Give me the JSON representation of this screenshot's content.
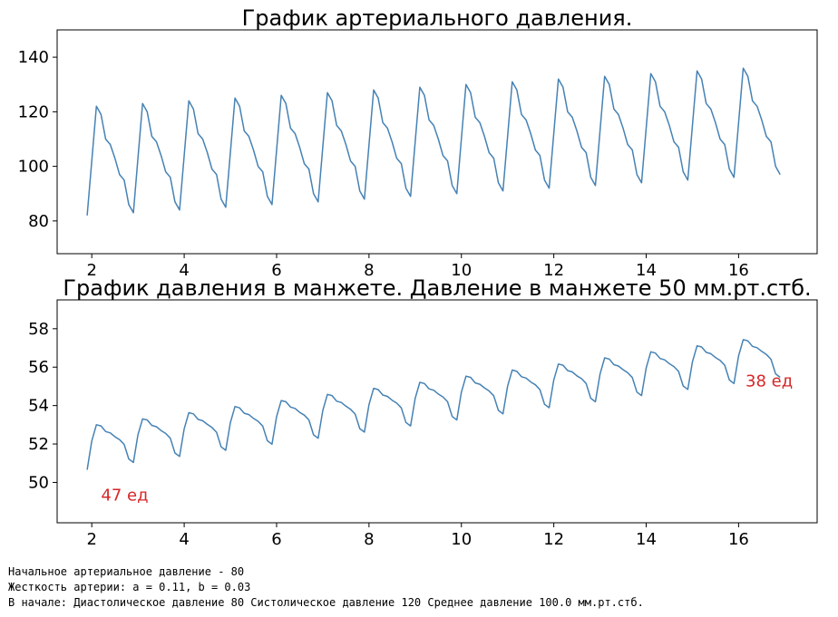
{
  "chart_data": [
    {
      "type": "line",
      "title": "График артериального давления.",
      "xlabel": "",
      "ylabel": "",
      "xlim": [
        1.25,
        17.7
      ],
      "ylim": [
        68,
        150
      ],
      "xticks": [
        2,
        4,
        6,
        8,
        10,
        12,
        14,
        16
      ],
      "yticks": [
        80,
        100,
        120,
        140
      ],
      "grid": false,
      "color": "#4682b4",
      "series": [
        {
          "x": [
            1.9,
            2.0,
            2.1,
            2.2,
            2.3,
            2.4,
            2.5,
            2.6,
            2.7,
            2.8,
            2.9,
            3.0,
            3.1,
            3.2,
            3.3,
            3.4,
            3.5,
            3.6,
            3.7,
            3.8,
            3.9,
            4.0,
            4.1,
            4.2,
            4.3,
            4.4,
            4.5,
            4.6,
            4.7,
            4.8,
            4.9,
            5.0,
            5.1,
            5.2,
            5.3,
            5.4,
            5.5,
            5.6,
            5.7,
            5.8,
            5.9,
            6.0,
            6.1,
            6.2,
            6.3,
            6.4,
            6.5,
            6.6,
            6.7,
            6.8,
            6.9,
            7.0,
            7.1,
            7.2,
            7.3,
            7.4,
            7.5,
            7.6,
            7.7,
            7.8,
            7.9,
            8.0,
            8.1,
            8.2,
            8.3,
            8.4,
            8.5,
            8.6,
            8.7,
            8.8,
            8.9,
            9.0,
            9.1,
            9.2,
            9.3,
            9.4,
            9.5,
            9.6,
            9.7,
            9.8,
            9.9,
            10.0,
            10.1,
            10.2,
            10.3,
            10.4,
            10.5,
            10.6,
            10.7,
            10.8,
            10.9,
            11.0,
            11.1,
            11.2,
            11.3,
            11.4,
            11.5,
            11.6,
            11.7,
            11.8,
            11.9,
            12.0,
            12.1,
            12.2,
            12.3,
            12.4,
            12.5,
            12.6,
            12.7,
            12.8,
            12.9,
            13.0,
            13.1,
            13.2,
            13.3,
            13.4,
            13.5,
            13.6,
            13.7,
            13.8,
            13.9,
            14.0,
            14.1,
            14.2,
            14.3,
            14.4,
            14.5,
            14.6,
            14.7,
            14.8,
            14.9,
            15.0,
            15.1,
            15.2,
            15.3,
            15.4,
            15.5,
            15.6,
            15.7,
            15.8,
            15.9,
            16.0,
            16.1,
            16.2,
            16.3,
            16.4,
            16.5,
            16.6,
            16.7,
            16.8,
            16.9
          ],
          "values": [
            82.0,
            102.0,
            122.0,
            119.0,
            110.0,
            108.0,
            103.0,
            97.0,
            95.0,
            86.0,
            83.0,
            103.0,
            123.0,
            120.0,
            111.0,
            109.0,
            104.0,
            98.0,
            96.0,
            87.0,
            84.0,
            104.0,
            124.0,
            121.0,
            112.0,
            110.0,
            105.0,
            99.0,
            97.0,
            88.0,
            85.0,
            105.0,
            125.0,
            122.0,
            113.0,
            111.0,
            106.0,
            100.0,
            98.0,
            89.0,
            86.0,
            106.0,
            126.0,
            123.0,
            114.0,
            112.0,
            107.0,
            101.0,
            99.0,
            90.0,
            87.0,
            107.0,
            127.0,
            124.0,
            115.0,
            113.0,
            108.0,
            102.0,
            100.0,
            91.0,
            88.0,
            108.0,
            128.0,
            125.0,
            116.0,
            114.0,
            109.0,
            103.0,
            101.0,
            92.0,
            89.0,
            109.0,
            129.0,
            126.0,
            117.0,
            115.0,
            110.0,
            104.0,
            102.0,
            93.0,
            90.0,
            110.0,
            130.0,
            127.0,
            118.0,
            116.0,
            111.0,
            105.0,
            103.0,
            94.0,
            91.0,
            111.0,
            131.0,
            128.0,
            119.0,
            117.0,
            112.0,
            106.0,
            104.0,
            95.0,
            92.0,
            112.0,
            132.0,
            129.0,
            120.0,
            118.0,
            113.0,
            107.0,
            105.0,
            96.0,
            93.0,
            113.0,
            133.0,
            130.0,
            121.0,
            119.0,
            114.0,
            108.0,
            106.0,
            97.0,
            94.0,
            114.0,
            134.0,
            131.0,
            122.0,
            120.0,
            115.0,
            109.0,
            107.0,
            98.0,
            95.0,
            115.0,
            135.0,
            132.0,
            123.0,
            121.0,
            116.0,
            110.0,
            108.0,
            99.0,
            96.0,
            116.0,
            136.0,
            133.0,
            124.0,
            122.0,
            117.0,
            111.0,
            109.0,
            100.0,
            97.0
          ]
        }
      ],
      "annotations": []
    },
    {
      "type": "line",
      "title": "График давления в манжете. Давление в манжете 50 мм.рт.стб.",
      "xlabel": "",
      "ylabel": "",
      "xlim": [
        1.25,
        17.7
      ],
      "ylim": [
        47.9,
        59.5
      ],
      "xticks": [
        2,
        4,
        6,
        8,
        10,
        12,
        14,
        16
      ],
      "yticks": [
        50,
        52,
        54,
        56,
        58
      ],
      "grid": false,
      "color": "#4682b4",
      "series": [
        {
          "x": [
            1.9,
            2.0,
            2.1,
            2.2,
            2.3,
            2.4,
            2.5,
            2.6,
            2.7,
            2.8,
            2.9,
            3.0,
            3.1,
            3.2,
            3.3,
            3.4,
            3.5,
            3.6,
            3.7,
            3.8,
            3.9,
            4.0,
            4.1,
            4.2,
            4.3,
            4.4,
            4.5,
            4.6,
            4.7,
            4.8,
            4.9,
            5.0,
            5.1,
            5.2,
            5.3,
            5.4,
            5.5,
            5.6,
            5.7,
            5.8,
            5.9,
            6.0,
            6.1,
            6.2,
            6.3,
            6.4,
            6.5,
            6.6,
            6.7,
            6.8,
            6.9,
            7.0,
            7.1,
            7.2,
            7.3,
            7.4,
            7.5,
            7.6,
            7.7,
            7.8,
            7.9,
            8.0,
            8.1,
            8.2,
            8.3,
            8.4,
            8.5,
            8.6,
            8.7,
            8.8,
            8.9,
            9.0,
            9.1,
            9.2,
            9.3,
            9.4,
            9.5,
            9.6,
            9.7,
            9.8,
            9.9,
            10.0,
            10.1,
            10.2,
            10.3,
            10.4,
            10.5,
            10.6,
            10.7,
            10.8,
            10.9,
            11.0,
            11.1,
            11.2,
            11.3,
            11.4,
            11.5,
            11.6,
            11.7,
            11.8,
            11.9,
            12.0,
            12.1,
            12.2,
            12.3,
            12.4,
            12.5,
            12.6,
            12.7,
            12.8,
            12.9,
            13.0,
            13.1,
            13.2,
            13.3,
            13.4,
            13.5,
            13.6,
            13.7,
            13.8,
            13.9,
            14.0,
            14.1,
            14.2,
            14.3,
            14.4,
            14.5,
            14.6,
            14.7,
            14.8,
            14.9,
            15.0,
            15.1,
            15.2,
            15.3,
            15.4,
            15.5,
            15.6,
            15.7,
            15.8,
            15.9,
            16.0,
            16.1,
            16.2,
            16.3,
            16.4,
            16.5,
            16.6,
            16.7,
            16.8,
            16.9
          ],
          "values": [
            50.66,
            52.16,
            53.0,
            52.94,
            52.65,
            52.58,
            52.38,
            52.23,
            51.98,
            51.22,
            51.04,
            52.48,
            53.31,
            53.25,
            52.97,
            52.9,
            52.7,
            52.55,
            52.3,
            51.53,
            51.35,
            52.79,
            53.63,
            53.57,
            53.28,
            53.21,
            53.02,
            52.86,
            52.61,
            51.85,
            51.67,
            53.11,
            53.95,
            53.88,
            53.6,
            53.53,
            53.33,
            53.18,
            52.93,
            52.17,
            51.99,
            53.43,
            54.26,
            54.2,
            53.92,
            53.85,
            53.65,
            53.5,
            53.25,
            52.48,
            52.3,
            53.74,
            54.58,
            54.52,
            54.23,
            54.16,
            53.97,
            53.81,
            53.56,
            52.8,
            52.62,
            54.06,
            54.9,
            54.83,
            54.55,
            54.48,
            54.28,
            54.13,
            53.88,
            53.12,
            52.94,
            54.38,
            55.21,
            55.15,
            54.87,
            54.8,
            54.6,
            54.45,
            54.2,
            53.43,
            53.25,
            54.69,
            55.53,
            55.47,
            55.18,
            55.11,
            54.92,
            54.76,
            54.51,
            53.75,
            53.57,
            55.01,
            55.85,
            55.78,
            55.5,
            55.43,
            55.23,
            55.08,
            54.83,
            54.07,
            53.89,
            55.33,
            56.16,
            56.1,
            55.82,
            55.75,
            55.55,
            55.4,
            55.15,
            54.38,
            54.2,
            55.64,
            56.48,
            56.42,
            56.13,
            56.06,
            55.87,
            55.71,
            55.46,
            54.7,
            54.52,
            55.96,
            56.8,
            56.73,
            56.45,
            56.38,
            56.18,
            56.03,
            55.78,
            55.02,
            54.84,
            56.28,
            57.11,
            57.05,
            56.77,
            56.7,
            56.5,
            56.35,
            56.1,
            55.33,
            55.15,
            56.59,
            57.43,
            57.37,
            57.08,
            57.01,
            56.82,
            56.66,
            56.41,
            55.65,
            55.47
          ]
        }
      ],
      "annotations": [
        {
          "text": "47 ед",
          "x": 2.2,
          "y": 49.05
        },
        {
          "text": "38 ед",
          "x": 16.15,
          "y": 55.0
        }
      ]
    }
  ],
  "info_lines": [
    "Начальное артериальное давление - 80",
    "Жесткость артерии: a = 0.11, b = 0.03",
    "В начале: Диастолическое давление 80 Систолическое давление 120 Среднее давление 100.0 мм.рт.стб."
  ]
}
